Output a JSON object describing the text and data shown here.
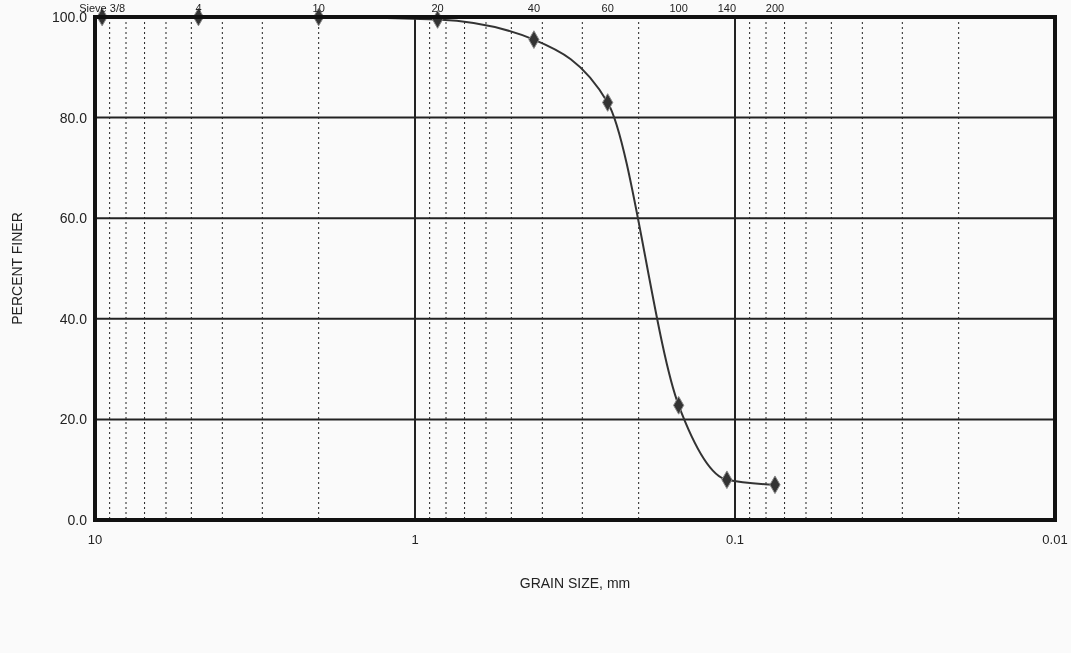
{
  "chart_data": {
    "type": "line",
    "xlabel": "GRAIN SIZE, mm",
    "ylabel": "PERCENT FINER",
    "x": [
      9.5,
      4.75,
      2.0,
      0.85,
      0.425,
      0.25,
      0.15,
      0.106,
      0.075
    ],
    "series": [
      {
        "color": "#333333",
        "values": [
          100,
          100,
          100,
          99.5,
          95.5,
          83,
          22.8,
          8,
          7
        ]
      }
    ],
    "marker": "diamond",
    "line_style": "solid",
    "log": "x",
    "grid": true,
    "xlim": [
      10,
      0.01
    ],
    "xticks": [
      10,
      {
        "value": 9,
        "label": null
      },
      {
        "value": 8,
        "label": null
      },
      {
        "value": 7,
        "label": null
      },
      {
        "value": 6,
        "label": null
      },
      {
        "value": 5,
        "label": null
      },
      {
        "value": 4,
        "label": null
      },
      {
        "value": 3,
        "label": null
      },
      {
        "value": 2,
        "label": null
      },
      1,
      {
        "value": 0.9,
        "label": null
      },
      {
        "value": 0.8,
        "label": null
      },
      {
        "value": 0.7,
        "label": null
      },
      {
        "value": 0.6,
        "label": null
      },
      {
        "value": 0.5,
        "label": null
      },
      {
        "value": 0.4,
        "label": null
      },
      {
        "value": 0.3,
        "label": null
      },
      {
        "value": 0.2,
        "label": null
      },
      0.1,
      {
        "value": 0.09,
        "label": null
      },
      {
        "value": 0.08,
        "label": null
      },
      {
        "value": 0.07,
        "label": null
      },
      {
        "value": 0.06,
        "label": null
      },
      {
        "value": 0.05,
        "label": null
      },
      {
        "value": 0.04,
        "label": null
      },
      {
        "value": 0.03,
        "label": null
      },
      {
        "value": 0.02,
        "label": null
      },
      0.01
    ],
    "annotations": [
      "Sieve 3/8",
      "4",
      "10",
      "20",
      "40",
      "60",
      "100",
      "140",
      "200"
    ],
    "ylim": [
      0,
      100
    ],
    "yticks": [
      {
        "value": 0,
        "label": "0.0"
      },
      {
        "value": 20,
        "label": "20.0"
      },
      {
        "value": 40,
        "label": "40.0"
      },
      {
        "value": 60,
        "label": "60.0"
      },
      {
        "value": 80,
        "label": "80.0"
      },
      {
        "value": 100,
        "label": "100.0"
      }
    ]
  }
}
